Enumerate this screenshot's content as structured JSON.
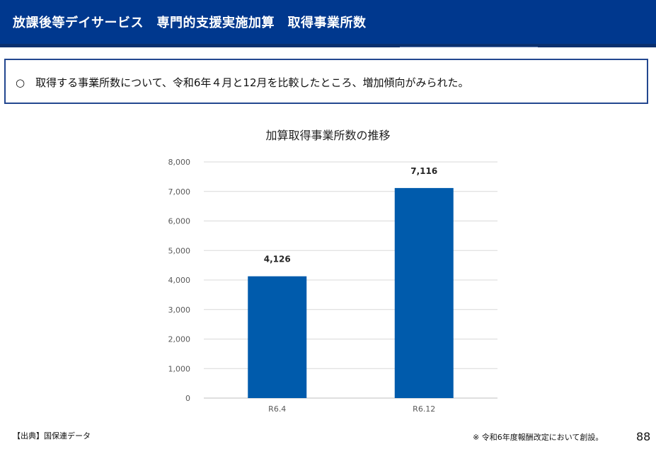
{
  "header": {
    "title": "放課後等デイサービス　専門的支援実施加算　取得事業所数"
  },
  "summary": {
    "text": "○　取得する事業所数について、令和6年４月と12月を比較したところ、増加傾向がみられた。"
  },
  "chart_data": {
    "type": "bar",
    "title": "加算取得事業所数の推移",
    "categories": [
      "R6.4",
      "R6.12"
    ],
    "values": [
      4126,
      7116
    ],
    "value_labels": [
      "4,126",
      "7,116"
    ],
    "ylim": [
      0,
      8000
    ],
    "yticks": [
      "0",
      "1,000",
      "2,000",
      "3,000",
      "4,000",
      "5,000",
      "6,000",
      "7,000",
      "8,000"
    ],
    "grid": true,
    "bar_color": "#005bac",
    "xlabel": "",
    "ylabel": ""
  },
  "footer": {
    "source": "【出典】国保連データ",
    "note": "※ 令和6年度報酬改定において創設。",
    "page_number": "88"
  },
  "colors": {
    "header_bg": "#00388e",
    "box_border": "#23478f",
    "bar": "#005bac",
    "grid": "#d9d9d9"
  }
}
